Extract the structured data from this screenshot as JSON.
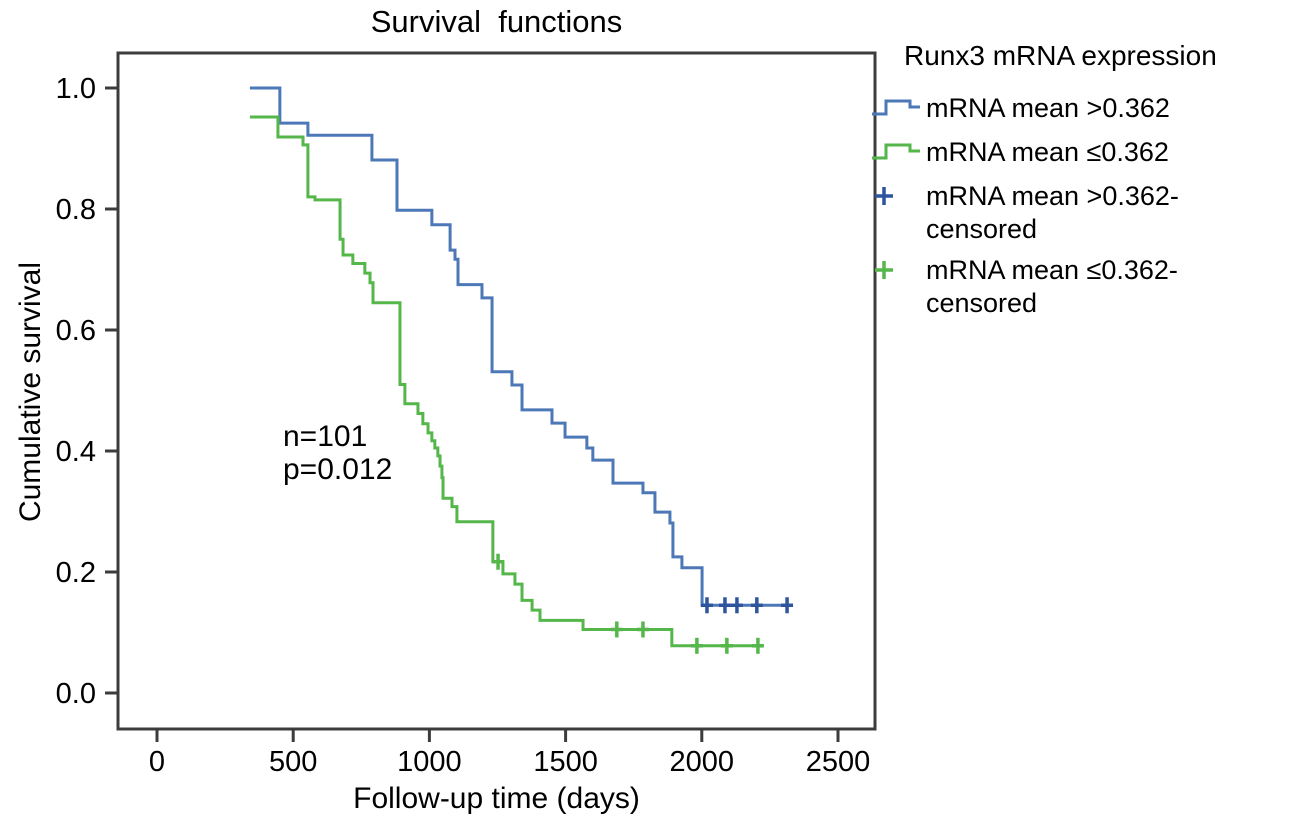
{
  "legend": {
    "title": "Runx3 mRNA expression",
    "items": [
      {
        "type": "step-line",
        "color": "#4d78b7",
        "label": "mRNA mean >0.362"
      },
      {
        "type": "step-line",
        "color": "#55b64a",
        "label": "mRNA mean ≤0.362"
      },
      {
        "type": "censored-plus",
        "color": "#2f549e",
        "label": "mRNA mean >0.362-",
        "label2": "censored"
      },
      {
        "type": "censored-plus",
        "color": "#55b64a",
        "label": "mRNA mean ≤0.362-",
        "label2": "censored"
      }
    ]
  },
  "colors": {
    "frame": "#3c3c3c",
    "blue": "#4d78b7",
    "blue_censor": "#2f549e",
    "green": "#55b64a"
  },
  "chart_data": {
    "type": "line",
    "subtype": "kaplan-meier-step",
    "title": "Survival  functions",
    "xlabel": "Follow-up time (days)",
    "ylabel": "Cumulative survival",
    "xlim": [
      -140,
      2635
    ],
    "ylim": [
      -0.06,
      1.058
    ],
    "grid": false,
    "legend_position": "right",
    "annotations": [
      "n=101",
      "p=0.012"
    ],
    "xticks": {
      "values": [
        0,
        500,
        1000,
        1500,
        2000,
        2500
      ],
      "labels": [
        "0",
        "500",
        "1000",
        "1500",
        "2000",
        "2500"
      ]
    },
    "yticks": {
      "values": [
        0.0,
        0.2,
        0.4,
        0.6,
        0.8,
        1.0
      ],
      "labels": [
        "0.0",
        "0.2",
        "0.4",
        "0.6",
        "0.8",
        "1.0"
      ]
    },
    "series": [
      {
        "name": "mRNA mean >0.362",
        "color": "#4d78b7",
        "censor_color": "#2f549e",
        "step": "post",
        "points": [
          [
            341,
            1.0
          ],
          [
            451,
            0.942
          ],
          [
            554,
            0.922
          ],
          [
            789,
            0.881
          ],
          [
            881,
            0.798
          ],
          [
            1009,
            0.774
          ],
          [
            1076,
            0.732
          ],
          [
            1094,
            0.717
          ],
          [
            1105,
            0.675
          ],
          [
            1193,
            0.653
          ],
          [
            1230,
            0.531
          ],
          [
            1303,
            0.509
          ],
          [
            1340,
            0.468
          ],
          [
            1450,
            0.446
          ],
          [
            1498,
            0.423
          ],
          [
            1578,
            0.405
          ],
          [
            1600,
            0.385
          ],
          [
            1674,
            0.347
          ],
          [
            1784,
            0.331
          ],
          [
            1828,
            0.299
          ],
          [
            1883,
            0.281
          ],
          [
            1894,
            0.225
          ],
          [
            1927,
            0.207
          ],
          [
            2001,
            0.145
          ]
        ],
        "end_day": 2330,
        "censored": [
          [
            2019,
            0.145
          ],
          [
            2085,
            0.145
          ],
          [
            2129,
            0.145
          ],
          [
            2202,
            0.145
          ],
          [
            2313,
            0.145
          ]
        ]
      },
      {
        "name": "mRNA mean ≤0.362",
        "color": "#55b64a",
        "censor_color": "#55b64a",
        "step": "post",
        "points": [
          [
            341,
            0.952
          ],
          [
            444,
            0.919
          ],
          [
            536,
            0.906
          ],
          [
            554,
            0.82
          ],
          [
            580,
            0.815
          ],
          [
            672,
            0.75
          ],
          [
            683,
            0.724
          ],
          [
            719,
            0.71
          ],
          [
            763,
            0.694
          ],
          [
            782,
            0.678
          ],
          [
            793,
            0.645
          ],
          [
            892,
            0.51
          ],
          [
            910,
            0.478
          ],
          [
            958,
            0.462
          ],
          [
            976,
            0.445
          ],
          [
            995,
            0.43
          ],
          [
            1009,
            0.417
          ],
          [
            1020,
            0.405
          ],
          [
            1031,
            0.392
          ],
          [
            1039,
            0.375
          ],
          [
            1046,
            0.356
          ],
          [
            1050,
            0.322
          ],
          [
            1083,
            0.308
          ],
          [
            1101,
            0.283
          ],
          [
            1233,
            0.217
          ],
          [
            1270,
            0.197
          ],
          [
            1314,
            0.18
          ],
          [
            1340,
            0.153
          ],
          [
            1377,
            0.137
          ],
          [
            1406,
            0.12
          ],
          [
            1564,
            0.105
          ],
          [
            1890,
            0.078
          ]
        ],
        "end_day": 2225,
        "censored": [
          [
            1252,
            0.217
          ],
          [
            1688,
            0.105
          ],
          [
            1784,
            0.105
          ],
          [
            1982,
            0.078
          ],
          [
            2092,
            0.078
          ],
          [
            2206,
            0.078
          ]
        ]
      }
    ]
  }
}
